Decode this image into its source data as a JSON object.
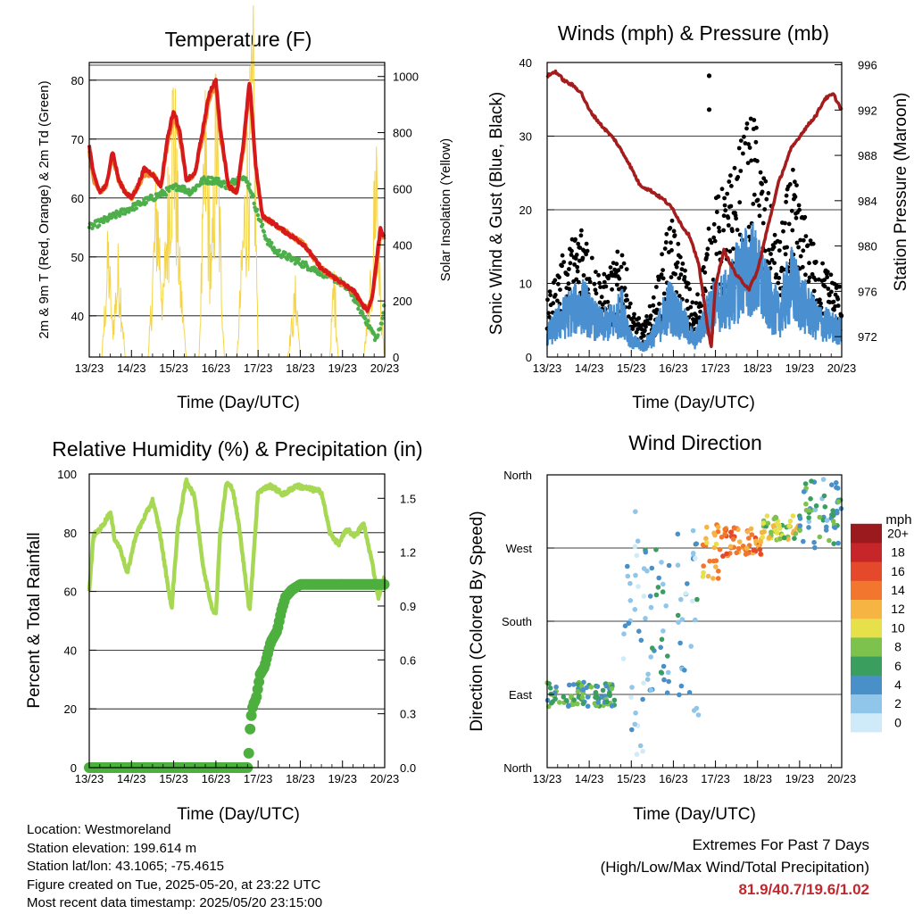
{
  "x_ticks": [
    "13/23",
    "14/23",
    "15/23",
    "16/23",
    "17/23",
    "18/23",
    "19/23",
    "20/23"
  ],
  "x_label": "Time (Day/UTC)",
  "colors": {
    "temp_2m": "#d7191c",
    "temp_9m": "#f08a2c",
    "dewpoint": "#4daf4a",
    "solar": "#f5d547",
    "sonic_wind": "#4a90d0",
    "gust": "#000000",
    "pressure": "#a51c1c",
    "rh": "#a6d854",
    "precip": "#4caf3e",
    "extremes_value": "#c0282d"
  },
  "chart_data": [
    {
      "id": "temperature",
      "type": "line",
      "title": "Temperature (F)",
      "xlabel": "Time (Day/UTC)",
      "ylabel": "2m & 9m T (Red, Orange) & 2m Td (Green)",
      "ylabel_right": "Solar Insolation (Yellow)",
      "ylim": [
        33,
        83
      ],
      "yticks": [
        40,
        50,
        60,
        70,
        80
      ],
      "ylim_right": [
        0,
        1050
      ],
      "yticks_right": [
        0,
        200,
        400,
        600,
        800,
        1000
      ],
      "x_range": [
        0,
        7
      ],
      "series": [
        {
          "key": "t2m",
          "x": [
            0,
            0.1,
            0.25,
            0.4,
            0.55,
            0.7,
            0.85,
            1.0,
            1.15,
            1.3,
            1.5,
            1.7,
            1.85,
            2.0,
            2.15,
            2.3,
            2.5,
            2.7,
            2.85,
            3.0,
            3.1,
            3.3,
            3.5,
            3.65,
            3.8,
            3.95,
            4.1,
            4.3,
            4.5,
            4.7,
            4.9,
            5.1,
            5.3,
            5.5,
            5.7,
            5.9,
            6.1,
            6.3,
            6.45,
            6.6,
            6.7,
            6.8,
            6.9,
            7.0
          ],
          "values": [
            69,
            64,
            61,
            62,
            68,
            63,
            61,
            60,
            62,
            65,
            64,
            62,
            70,
            75,
            71,
            63,
            64,
            72,
            78,
            80,
            72,
            62,
            61,
            69,
            80,
            65,
            57,
            56,
            55,
            54,
            53,
            52,
            50,
            48,
            47,
            46,
            45,
            44,
            42,
            41,
            43,
            49,
            55,
            53
          ]
        },
        {
          "key": "t9m",
          "x": [
            0,
            0.1,
            0.25,
            0.4,
            0.55,
            0.7,
            0.85,
            1.0,
            1.15,
            1.3,
            1.5,
            1.7,
            1.85,
            2.0,
            2.15,
            2.3,
            2.5,
            2.7,
            2.85,
            3.0,
            3.1,
            3.3,
            3.5,
            3.65,
            3.8,
            3.95,
            4.1,
            4.3,
            4.5,
            4.7,
            4.9,
            5.1,
            5.3,
            5.5,
            5.7,
            5.9,
            6.1,
            6.3,
            6.45,
            6.6,
            6.7,
            6.8,
            6.9,
            7.0
          ],
          "values": [
            68,
            63,
            61,
            62,
            67,
            63,
            61,
            60,
            62,
            64,
            64,
            62,
            69,
            74,
            70,
            63,
            64,
            71,
            77,
            79,
            71,
            62,
            61,
            68,
            79,
            65,
            57,
            56,
            55,
            54,
            53,
            52,
            50,
            48,
            47,
            46,
            45,
            44,
            42,
            41,
            43,
            48,
            54,
            53
          ]
        },
        {
          "key": "td",
          "x": [
            0,
            0.3,
            0.6,
            0.9,
            1.2,
            1.5,
            1.8,
            2.1,
            2.4,
            2.7,
            3.0,
            3.3,
            3.6,
            3.8,
            4.0,
            4.2,
            4.4,
            4.7,
            5.0,
            5.3,
            5.6,
            5.9,
            6.2,
            6.5,
            6.8,
            6.9,
            7.0
          ],
          "values": [
            55,
            56,
            57,
            58,
            59,
            60,
            61,
            62,
            61,
            63,
            63,
            62,
            64,
            62,
            57,
            53,
            51,
            50,
            49,
            48,
            47,
            46,
            44,
            40,
            36,
            38,
            42
          ]
        },
        {
          "key": "solar",
          "x": [
            0,
            0.3,
            0.45,
            0.55,
            0.7,
            0.85,
            1.1,
            1.4,
            1.6,
            1.75,
            1.9,
            2.0,
            2.15,
            2.3,
            2.6,
            2.75,
            2.9,
            3.0,
            3.2,
            3.5,
            3.7,
            3.9,
            4.0,
            4.2,
            4.7,
            4.9,
            5.0,
            5.3,
            5.7,
            5.8,
            5.9,
            6.1,
            6.5,
            6.7,
            6.8,
            6.9,
            7.0
          ],
          "values": [
            0,
            0,
            400,
            100,
            350,
            0,
            0,
            0,
            600,
            200,
            700,
            950,
            300,
            0,
            0,
            800,
            300,
            900,
            0,
            0,
            600,
            1000,
            0,
            0,
            0,
            250,
            0,
            0,
            0,
            300,
            0,
            0,
            0,
            300,
            800,
            200,
            0
          ]
        }
      ]
    },
    {
      "id": "winds_pressure",
      "type": "scatter",
      "title": "Winds (mph) & Pressure (mb)",
      "xlabel": "Time (Day/UTC)",
      "ylabel": "Sonic Wind & Gust (Blue, Black)",
      "ylabel_right": "Station Pressure (Maroon)",
      "ylim": [
        0,
        40
      ],
      "yticks": [
        0,
        10,
        20,
        30,
        40
      ],
      "ylim_right": [
        970.2,
        996.2
      ],
      "yticks_right": [
        972,
        976,
        980,
        984,
        988,
        992,
        996
      ],
      "x_range": [
        0,
        7
      ],
      "series": [
        {
          "key": "wind_envelope",
          "x": [
            0,
            0.3,
            0.6,
            0.9,
            1.0,
            1.3,
            1.6,
            1.8,
            2.0,
            2.3,
            2.6,
            2.9,
            3.2,
            3.5,
            3.8,
            4.0,
            4.3,
            4.6,
            4.9,
            5.2,
            5.5,
            5.8,
            6.1,
            6.4,
            6.7,
            7.0
          ],
          "values": [
            4,
            7,
            9,
            10,
            8,
            6,
            7,
            9,
            3,
            2,
            5,
            10,
            7,
            3,
            8,
            10,
            11,
            16,
            17,
            12,
            8,
            14,
            10,
            7,
            6,
            5
          ]
        },
        {
          "key": "gust_envelope",
          "x": [
            0,
            0.3,
            0.6,
            0.9,
            1.0,
            1.3,
            1.6,
            1.8,
            2.0,
            2.3,
            2.6,
            2.9,
            3.2,
            3.5,
            3.8,
            4.0,
            4.3,
            4.6,
            4.9,
            5.2,
            5.5,
            5.8,
            6.1,
            6.4,
            6.7,
            7.0
          ],
          "values": [
            7,
            12,
            15,
            18,
            14,
            10,
            12,
            15,
            6,
            4,
            9,
            18,
            13,
            6,
            15,
            20,
            22,
            27,
            31,
            22,
            14,
            24,
            18,
            13,
            11,
            9
          ]
        },
        {
          "key": "pressure",
          "x": [
            0,
            0.2,
            0.4,
            0.6,
            0.8,
            1.0,
            1.3,
            1.6,
            1.9,
            2.2,
            2.5,
            2.8,
            3.0,
            3.2,
            3.4,
            3.6,
            3.8,
            3.9,
            4.0,
            4.2,
            4.5,
            4.8,
            5.0,
            5.2,
            5.5,
            5.8,
            6.1,
            6.4,
            6.6,
            6.8,
            7.0
          ],
          "values": [
            995.0,
            995.4,
            994.6,
            994.2,
            993.6,
            992.0,
            990.6,
            989.4,
            987.6,
            985.4,
            984.8,
            984.0,
            983.2,
            981.8,
            980.8,
            978.4,
            973.2,
            971.0,
            976.6,
            979.6,
            977.4,
            976.2,
            977.8,
            981.0,
            985.6,
            988.6,
            990.2,
            991.6,
            993.0,
            993.4,
            992.0
          ]
        }
      ],
      "annotations": [
        {
          "x": 3.85,
          "y": 38.2
        },
        {
          "x": 3.85,
          "y": 33.6
        }
      ]
    },
    {
      "id": "rh_precip",
      "type": "line",
      "title": "Relative Humidity (%) & Precipitation (in)",
      "xlabel": "Time (Day/UTC)",
      "ylabel": "Percent & Total Rainfall",
      "ylim": [
        0,
        100
      ],
      "yticks": [
        0,
        20,
        40,
        60,
        80,
        100
      ],
      "ylim_right": [
        0,
        1.6356
      ],
      "yticks_right": [
        "0.0",
        "0.3",
        "0.6",
        "0.9",
        "1.2",
        "1.5"
      ],
      "x_range": [
        0,
        7
      ],
      "series": [
        {
          "key": "rh",
          "x": [
            0,
            0.1,
            0.3,
            0.5,
            0.6,
            0.75,
            0.9,
            1.1,
            1.3,
            1.5,
            1.65,
            1.8,
            1.95,
            2.1,
            2.3,
            2.5,
            2.7,
            2.9,
            3.0,
            3.1,
            3.25,
            3.4,
            3.55,
            3.8,
            4.0,
            4.3,
            4.6,
            4.9,
            5.2,
            5.5,
            5.7,
            5.9,
            6.1,
            6.3,
            6.5,
            6.7,
            6.85,
            7.0
          ],
          "values": [
            60,
            79,
            82,
            87,
            78,
            74,
            66,
            79,
            85,
            91,
            82,
            68,
            54,
            82,
            98,
            92,
            68,
            55,
            52,
            80,
            97,
            95,
            82,
            53,
            94,
            96,
            93,
            96,
            95,
            94,
            80,
            76,
            81,
            79,
            83,
            70,
            58,
            65
          ]
        },
        {
          "key": "precip",
          "x": [
            0,
            0.5,
            1.0,
            1.5,
            2.0,
            2.5,
            3.0,
            3.5,
            3.75,
            3.78,
            3.82,
            3.88,
            3.95,
            4.05,
            4.15,
            4.3,
            4.45,
            4.55,
            4.65,
            4.8,
            5.0,
            5.3,
            5.6,
            6.0,
            6.5,
            7.0
          ],
          "values": [
            0,
            0,
            0,
            0,
            0,
            0,
            0,
            0,
            0,
            0.08,
            0.26,
            0.35,
            0.38,
            0.52,
            0.56,
            0.7,
            0.76,
            0.87,
            0.95,
            0.99,
            1.02,
            1.02,
            1.02,
            1.02,
            1.02,
            1.02
          ]
        }
      ]
    },
    {
      "id": "wind_direction",
      "type": "scatter",
      "title": "Wind Direction",
      "xlabel": "Time (Day/UTC)",
      "ylabel": "Direction (Colored By Speed)",
      "yticks": [
        "North",
        "East",
        "South",
        "West",
        "North"
      ],
      "ylim": [
        0,
        360
      ],
      "x_range": [
        0,
        7
      ],
      "colorbar": {
        "title": "mph",
        "labels": [
          "0",
          "2",
          "4",
          "6",
          "8",
          "10",
          "12",
          "14",
          "16",
          "18",
          "20+"
        ],
        "colors": [
          "#cfeaf8",
          "#8fc6ea",
          "#4a90c8",
          "#3a9e5e",
          "#7cc24c",
          "#e6e04a",
          "#f6b443",
          "#f2762e",
          "#e3492a",
          "#c6262a",
          "#9b1a1e"
        ]
      },
      "clusters": [
        {
          "x0": 0.0,
          "x1": 1.6,
          "d0": 75,
          "d1": 105,
          "speed": 6
        },
        {
          "x0": 1.8,
          "x1": 2.3,
          "d0": 15,
          "d1": 330,
          "speed": 2
        },
        {
          "x0": 2.3,
          "x1": 2.9,
          "d0": 90,
          "d1": 270,
          "speed": 4
        },
        {
          "x0": 3.1,
          "x1": 3.6,
          "d0": 60,
          "d1": 300,
          "speed": 3
        },
        {
          "x0": 3.7,
          "x1": 4.1,
          "d0": 230,
          "d1": 300,
          "speed": 12
        },
        {
          "x0": 4.1,
          "x1": 5.1,
          "d0": 260,
          "d1": 295,
          "speed": 14
        },
        {
          "x0": 5.1,
          "x1": 6.0,
          "d0": 280,
          "d1": 310,
          "speed": 9
        },
        {
          "x0": 6.0,
          "x1": 7.0,
          "d0": 270,
          "d1": 355,
          "speed": 5
        }
      ]
    }
  ],
  "metadata": {
    "location": "Location: Westmoreland",
    "elevation": "Station elevation: 199.614 m",
    "latlon": "Station lat/lon: 43.1065; -75.4615",
    "created": "Figure created on Tue, 2025-05-20, at 23:22 UTC",
    "latest": "Most recent data timestamp: 2025/05/20 23:15:00"
  },
  "extremes": {
    "title": "Extremes For Past 7 Days",
    "subtitle": "(High/Low/Max Wind/Total Precipitation)",
    "value": "81.9/40.7/19.6/1.02"
  }
}
